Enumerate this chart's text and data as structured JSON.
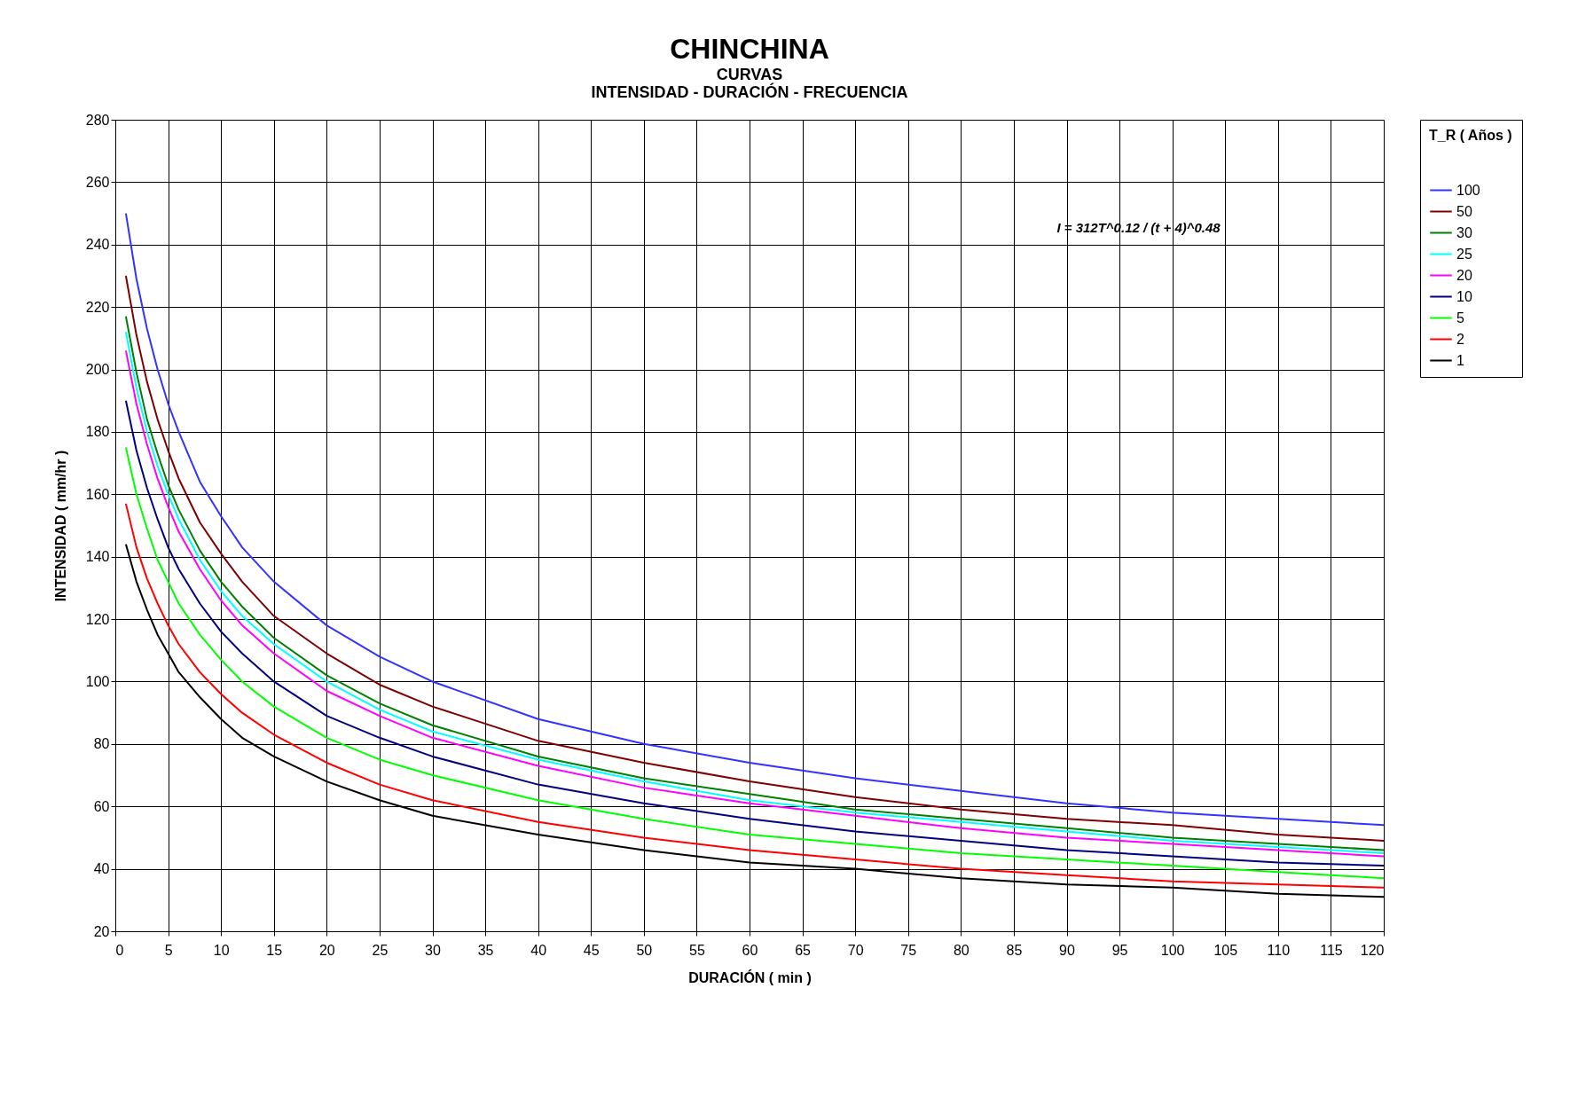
{
  "chart_data": {
    "type": "line",
    "title": "CHINCHINA",
    "subtitle": [
      "CURVAS",
      "INTENSIDAD - DURACIÓN - FRECUENCIA"
    ],
    "xlabel": "DURACIÓN ( min )",
    "ylabel": "INTENSIDAD ( mm/hr )",
    "legend_title": "T_R ( Años )",
    "annotations": [
      "I = 312T^0.12 / (t + 4)^0.48"
    ],
    "x": [
      1,
      2,
      3,
      4,
      5,
      6,
      8,
      10,
      12,
      15,
      20,
      25,
      30,
      40,
      50,
      60,
      70,
      80,
      90,
      100,
      110,
      120
    ],
    "series": [
      {
        "name": "100",
        "color": "#3333ff",
        "values": [
          250,
          229,
          213,
          200,
          189,
          180,
          164,
          153,
          143,
          132,
          118,
          108,
          100,
          88,
          80,
          74,
          69,
          65,
          61,
          58,
          56,
          54
        ]
      },
      {
        "name": "50",
        "color": "#800000",
        "values": [
          230,
          211,
          196,
          184,
          174,
          165,
          151,
          141,
          132,
          121,
          109,
          99,
          92,
          81,
          74,
          68,
          63,
          59,
          56,
          54,
          51,
          49
        ]
      },
      {
        "name": "30",
        "color": "#008000",
        "values": [
          217,
          199,
          184,
          173,
          163,
          155,
          142,
          132,
          124,
          114,
          102,
          93,
          86,
          76,
          69,
          64,
          59,
          56,
          53,
          50,
          48,
          46
        ]
      },
      {
        "name": "25",
        "color": "#00ffff",
        "values": [
          212,
          194,
          180,
          169,
          160,
          152,
          139,
          129,
          121,
          112,
          100,
          91,
          84,
          75,
          68,
          62,
          58,
          55,
          52,
          49,
          47,
          45
        ]
      },
      {
        "name": "20",
        "color": "#ff00ff",
        "values": [
          206,
          189,
          176,
          165,
          156,
          148,
          136,
          126,
          118,
          109,
          97,
          89,
          82,
          73,
          66,
          61,
          57,
          53,
          50,
          48,
          46,
          44
        ]
      },
      {
        "name": "10",
        "color": "#000080",
        "values": [
          190,
          174,
          162,
          152,
          143,
          136,
          125,
          116,
          109,
          100,
          89,
          82,
          76,
          67,
          61,
          56,
          52,
          49,
          46,
          44,
          42,
          41
        ]
      },
      {
        "name": "5",
        "color": "#00ff00",
        "values": [
          175,
          160,
          149,
          139,
          132,
          125,
          115,
          107,
          100,
          92,
          82,
          75,
          70,
          62,
          56,
          51,
          48,
          45,
          43,
          41,
          39,
          37
        ]
      },
      {
        "name": "2",
        "color": "#ff0000",
        "values": [
          157,
          143,
          133,
          125,
          118,
          112,
          103,
          96,
          90,
          83,
          74,
          67,
          62,
          55,
          50,
          46,
          43,
          40,
          38,
          36,
          35,
          34
        ]
      },
      {
        "name": "1",
        "color": "#000000",
        "values": [
          144,
          132,
          123,
          115,
          109,
          103,
          95,
          88,
          82,
          76,
          68,
          62,
          57,
          51,
          46,
          42,
          40,
          37,
          35,
          34,
          32,
          31
        ]
      }
    ],
    "xlim": [
      0,
      120
    ],
    "xticks": [
      0,
      5,
      10,
      15,
      20,
      25,
      30,
      35,
      40,
      45,
      50,
      55,
      60,
      65,
      70,
      75,
      80,
      85,
      90,
      95,
      100,
      105,
      110,
      115,
      120
    ],
    "ylim": [
      20,
      280
    ],
    "yticks": [
      20,
      40,
      60,
      80,
      100,
      120,
      140,
      160,
      180,
      200,
      220,
      240,
      260,
      280
    ],
    "grid": true,
    "legend": "right",
    "marker": "none",
    "line_style": "solid"
  }
}
